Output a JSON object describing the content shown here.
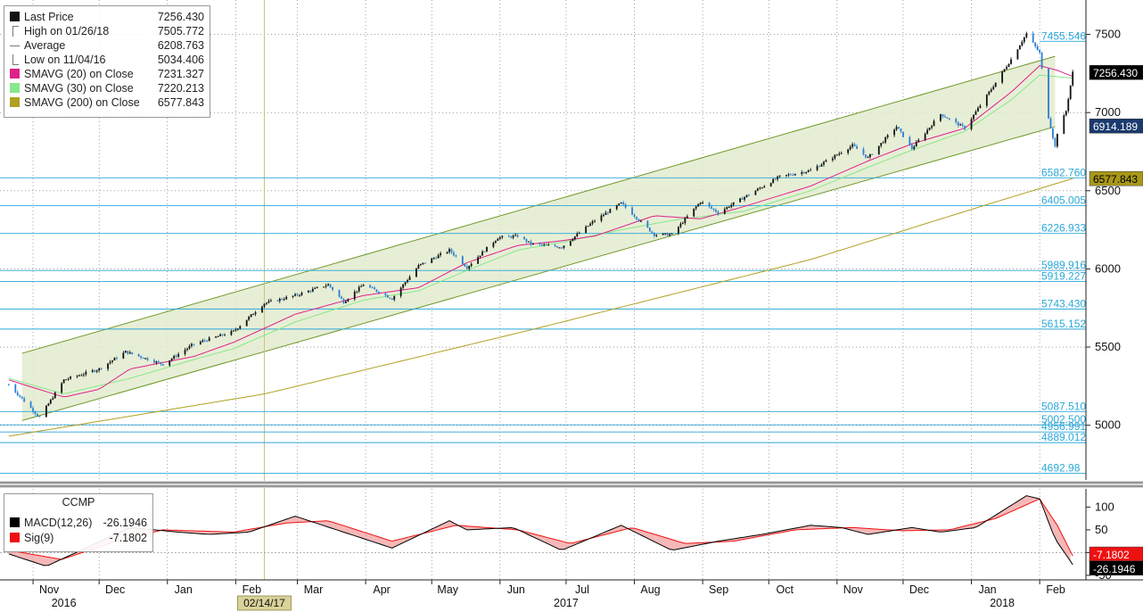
{
  "chart_data": {
    "type": "candlestick",
    "instrument": "CCMP",
    "main_panel": {
      "y_ticks": [
        5000,
        5500,
        6000,
        6500,
        7000,
        7500
      ],
      "ylim": [
        4650,
        7720
      ],
      "legend": [
        {
          "name": "Last Price",
          "value": "7256.430",
          "color": "#111111",
          "symbol": "square"
        },
        {
          "name": "High on 01/26/18",
          "value": "7505.772",
          "color": "#777777",
          "symbol": "high-marker"
        },
        {
          "name": "Average",
          "value": "6208.763",
          "color": "#777777",
          "symbol": "average-marker"
        },
        {
          "name": "Low on 11/04/16",
          "value": "5034.406",
          "color": "#777777",
          "symbol": "low-marker"
        },
        {
          "name": "SMAVG (20) on Close",
          "value": "7231.327",
          "color": "#e0208a",
          "symbol": "square"
        },
        {
          "name": "SMAVG (30) on Close",
          "value": "7220.213",
          "color": "#86e88a",
          "symbol": "square"
        },
        {
          "name": "SMAVG (200) on Close",
          "value": "6577.843",
          "color": "#b0a020",
          "symbol": "square"
        }
      ],
      "horizontal_levels": [
        {
          "label": "7455.546",
          "value": 7455.546
        },
        {
          "label": "6582.760",
          "value": 6582.76
        },
        {
          "label": "6405.005",
          "value": 6405.005
        },
        {
          "label": "6226.933",
          "value": 6226.933
        },
        {
          "label": "5989.916",
          "value": 5989.916
        },
        {
          "label": "5919.227",
          "value": 5919.227
        },
        {
          "label": "5743.430",
          "value": 5743.43
        },
        {
          "label": "5615.152",
          "value": 5615.152
        },
        {
          "label": "5087.510",
          "value": 5087.51
        },
        {
          "label": "5002.500",
          "value": 5002.5
        },
        {
          "label": "4956.991",
          "value": 4956.991
        },
        {
          "label": "4889.012",
          "value": 4889.012
        },
        {
          "label": "4692.98",
          "value": 4692.98
        }
      ],
      "right_tags": [
        {
          "label": "7256.430",
          "value": 7256.43,
          "bg": "#000000",
          "fg": "#ffffff"
        },
        {
          "label": "6914.189",
          "value": 6914.189,
          "bg": "#1a3a6e",
          "fg": "#ffffff"
        },
        {
          "label": "6577.843",
          "value": 6577.843,
          "bg": "#a89818",
          "fg": "#000000"
        }
      ],
      "channel": {
        "upper": [
          [
            "2016-10-27",
            5460
          ],
          [
            "2018-02-08",
            7360
          ]
        ],
        "lower": [
          [
            "2016-10-27",
            5030
          ],
          [
            "2018-02-08",
            6910
          ]
        ]
      },
      "marked_date": "02/14/17",
      "series_approx": {
        "close": [
          [
            "2016-10-21",
            5260
          ],
          [
            "2016-11-04",
            5050
          ],
          [
            "2016-11-15",
            5290
          ],
          [
            "2016-12-01",
            5360
          ],
          [
            "2016-12-13",
            5470
          ],
          [
            "2016-12-30",
            5390
          ],
          [
            "2017-01-13",
            5520
          ],
          [
            "2017-01-31",
            5600
          ],
          [
            "2017-02-14",
            5780
          ],
          [
            "2017-02-28",
            5830
          ],
          [
            "2017-03-15",
            5900
          ],
          [
            "2017-03-22",
            5790
          ],
          [
            "2017-03-31",
            5900
          ],
          [
            "2017-04-13",
            5810
          ],
          [
            "2017-04-25",
            6020
          ],
          [
            "2017-05-09",
            6120
          ],
          [
            "2017-05-17",
            6010
          ],
          [
            "2017-05-31",
            6200
          ],
          [
            "2017-06-09",
            6210
          ],
          [
            "2017-06-15",
            6160
          ],
          [
            "2017-06-29",
            6140
          ],
          [
            "2017-07-14",
            6310
          ],
          [
            "2017-07-26",
            6420
          ],
          [
            "2017-08-10",
            6220
          ],
          [
            "2017-08-18",
            6220
          ],
          [
            "2017-08-31",
            6430
          ],
          [
            "2017-09-08",
            6360
          ],
          [
            "2017-09-20",
            6460
          ],
          [
            "2017-10-06",
            6590
          ],
          [
            "2017-10-20",
            6630
          ],
          [
            "2017-11-08",
            6790
          ],
          [
            "2017-11-15",
            6710
          ],
          [
            "2017-11-28",
            6910
          ],
          [
            "2017-12-05",
            6770
          ],
          [
            "2017-12-18",
            6990
          ],
          [
            "2017-12-29",
            6900
          ],
          [
            "2018-01-10",
            7150
          ],
          [
            "2018-01-19",
            7340
          ],
          [
            "2018-01-26",
            7505
          ],
          [
            "2018-02-01",
            7380
          ],
          [
            "2018-02-05",
            6970
          ],
          [
            "2018-02-08",
            6780
          ],
          [
            "2018-02-09",
            6870
          ],
          [
            "2018-02-13",
            7010
          ],
          [
            "2018-02-16",
            7256
          ]
        ],
        "sma20": [
          [
            "2016-10-21",
            5290
          ],
          [
            "2016-11-15",
            5180
          ],
          [
            "2016-12-01",
            5230
          ],
          [
            "2016-12-15",
            5360
          ],
          [
            "2017-01-13",
            5440
          ],
          [
            "2017-01-31",
            5530
          ],
          [
            "2017-02-28",
            5710
          ],
          [
            "2017-03-31",
            5830
          ],
          [
            "2017-04-25",
            5880
          ],
          [
            "2017-05-17",
            6040
          ],
          [
            "2017-06-09",
            6150
          ],
          [
            "2017-06-29",
            6180
          ],
          [
            "2017-07-14",
            6210
          ],
          [
            "2017-08-10",
            6340
          ],
          [
            "2017-08-31",
            6320
          ],
          [
            "2017-09-20",
            6400
          ],
          [
            "2017-10-20",
            6530
          ],
          [
            "2017-11-15",
            6690
          ],
          [
            "2017-12-05",
            6800
          ],
          [
            "2017-12-29",
            6900
          ],
          [
            "2018-01-19",
            7130
          ],
          [
            "2018-02-01",
            7300
          ],
          [
            "2018-02-09",
            7270
          ],
          [
            "2018-02-16",
            7231
          ]
        ],
        "sma30": [
          [
            "2016-10-21",
            5300
          ],
          [
            "2016-11-15",
            5200
          ],
          [
            "2016-12-15",
            5300
          ],
          [
            "2017-01-13",
            5420
          ],
          [
            "2017-01-31",
            5490
          ],
          [
            "2017-02-28",
            5660
          ],
          [
            "2017-03-31",
            5800
          ],
          [
            "2017-04-25",
            5860
          ],
          [
            "2017-05-17",
            5990
          ],
          [
            "2017-06-09",
            6120
          ],
          [
            "2017-06-29",
            6170
          ],
          [
            "2017-07-26",
            6250
          ],
          [
            "2017-08-18",
            6310
          ],
          [
            "2017-09-20",
            6370
          ],
          [
            "2017-10-20",
            6500
          ],
          [
            "2017-11-15",
            6650
          ],
          [
            "2017-12-05",
            6760
          ],
          [
            "2017-12-29",
            6880
          ],
          [
            "2018-01-19",
            7080
          ],
          [
            "2018-02-01",
            7240
          ],
          [
            "2018-02-16",
            7220
          ]
        ],
        "sma200": [
          [
            "2016-10-21",
            4930
          ],
          [
            "2017-02-14",
            5200
          ],
          [
            "2017-06-15",
            5610
          ],
          [
            "2017-10-20",
            6060
          ],
          [
            "2018-01-10",
            6420
          ],
          [
            "2018-02-16",
            6578
          ]
        ]
      }
    },
    "macd_panel": {
      "title": "CCMP",
      "y_ticks": [
        -50,
        0,
        50,
        100
      ],
      "ylim": [
        -60,
        140
      ],
      "legend": [
        {
          "name": "MACD(12,26)",
          "value": "-26.1946",
          "color": "#000000"
        },
        {
          "name": "Sig(9)",
          "value": "-7.1802",
          "color": "#ee1111"
        }
      ],
      "right_tags": [
        {
          "label": "-7.1802",
          "value": -7.1802,
          "bg": "#ee1111",
          "fg": "#ffffff"
        },
        {
          "label": "-26.1946",
          "value": -26.1946,
          "bg": "#000000",
          "fg": "#ffffff"
        }
      ],
      "macd_approx": [
        [
          "2016-10-21",
          -3
        ],
        [
          "2016-11-07",
          -30
        ],
        [
          "2016-11-25",
          10
        ],
        [
          "2016-12-15",
          55
        ],
        [
          "2017-01-06",
          45
        ],
        [
          "2017-01-20",
          40
        ],
        [
          "2017-02-07",
          45
        ],
        [
          "2017-02-28",
          80
        ],
        [
          "2017-03-22",
          45
        ],
        [
          "2017-04-13",
          10
        ],
        [
          "2017-05-09",
          70
        ],
        [
          "2017-05-17",
          50
        ],
        [
          "2017-06-07",
          55
        ],
        [
          "2017-06-29",
          5
        ],
        [
          "2017-07-26",
          60
        ],
        [
          "2017-08-18",
          5
        ],
        [
          "2017-09-08",
          25
        ],
        [
          "2017-09-28",
          40
        ],
        [
          "2017-10-20",
          60
        ],
        [
          "2017-11-03",
          55
        ],
        [
          "2017-11-15",
          40
        ],
        [
          "2017-12-05",
          55
        ],
        [
          "2017-12-18",
          45
        ],
        [
          "2018-01-03",
          55
        ],
        [
          "2018-01-26",
          125
        ],
        [
          "2018-02-01",
          118
        ],
        [
          "2018-02-08",
          30
        ],
        [
          "2018-02-16",
          -26.19
        ]
      ],
      "signal_approx": [
        [
          "2016-10-21",
          5
        ],
        [
          "2016-11-14",
          -15
        ],
        [
          "2016-12-09",
          25
        ],
        [
          "2016-12-30",
          50
        ],
        [
          "2017-01-31",
          45
        ],
        [
          "2017-02-24",
          65
        ],
        [
          "2017-03-15",
          70
        ],
        [
          "2017-04-13",
          25
        ],
        [
          "2017-05-12",
          60
        ],
        [
          "2017-06-09",
          50
        ],
        [
          "2017-07-03",
          20
        ],
        [
          "2017-07-31",
          55
        ],
        [
          "2017-08-24",
          20
        ],
        [
          "2017-09-15",
          25
        ],
        [
          "2017-10-13",
          50
        ],
        [
          "2017-11-08",
          55
        ],
        [
          "2017-12-01",
          48
        ],
        [
          "2017-12-22",
          50
        ],
        [
          "2018-01-12",
          75
        ],
        [
          "2018-02-01",
          118
        ],
        [
          "2018-02-09",
          60
        ],
        [
          "2018-02-16",
          -7.18
        ]
      ]
    },
    "x_axis": {
      "month_labels": [
        {
          "label": "Nov",
          "date": "2016-11-01"
        },
        {
          "label": "Dec",
          "date": "2016-12-01"
        },
        {
          "label": "Jan",
          "date": "2017-01-01"
        },
        {
          "label": "Feb",
          "date": "2017-02-01"
        },
        {
          "label": "Mar",
          "date": "2017-03-01"
        },
        {
          "label": "Apr",
          "date": "2017-04-01"
        },
        {
          "label": "May",
          "date": "2017-05-01"
        },
        {
          "label": "Jun",
          "date": "2017-06-01"
        },
        {
          "label": "Jul",
          "date": "2017-07-01"
        },
        {
          "label": "Aug",
          "date": "2017-08-01"
        },
        {
          "label": "Sep",
          "date": "2017-09-01"
        },
        {
          "label": "Oct",
          "date": "2017-10-01"
        },
        {
          "label": "Nov",
          "date": "2017-11-01"
        },
        {
          "label": "Dec",
          "date": "2017-12-01"
        },
        {
          "label": "Jan",
          "date": "2018-01-01"
        },
        {
          "label": "Feb",
          "date": "2018-02-01"
        }
      ],
      "year_labels": [
        {
          "label": "2016",
          "date": "2016-11-15"
        },
        {
          "label": "2017",
          "date": "2017-07-01"
        },
        {
          "label": "2018",
          "date": "2018-01-15"
        }
      ],
      "xlim": [
        "2016-10-17",
        "2018-02-22"
      ]
    },
    "colors": {
      "channel_fill": "#e3ebcf",
      "channel_line": "#6f9a2a",
      "level_line": "#2aa8d8",
      "level_text": "#2aa8d8",
      "candle_up": "#111111",
      "candle_down": "#2a7fd0",
      "sma20": "#e0208a",
      "sma30": "#86e88a",
      "sma200": "#b0a020",
      "macd": "#000000",
      "signal": "#ee1111",
      "macd_fill": "#f2a0a0",
      "grid": "#666666",
      "marker_line": "#c9c37a"
    }
  }
}
